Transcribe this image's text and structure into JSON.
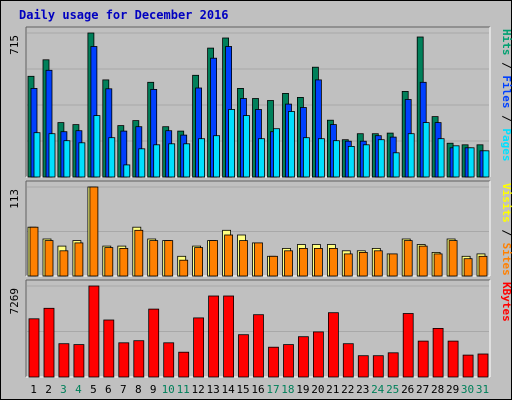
{
  "chart_data": {
    "type": "bar",
    "title": "Daily usage for December 2016",
    "categories": [
      "1",
      "2",
      "3",
      "4",
      "5",
      "6",
      "7",
      "8",
      "9",
      "10",
      "11",
      "12",
      "13",
      "14",
      "15",
      "16",
      "17",
      "18",
      "19",
      "20",
      "21",
      "22",
      "23",
      "24",
      "25",
      "26",
      "27",
      "28",
      "29",
      "30",
      "31"
    ],
    "weekend_days": [
      "3",
      "4",
      "10",
      "11",
      "17",
      "18",
      "24",
      "25",
      "30",
      "31"
    ],
    "panels": [
      {
        "id": "requests",
        "y_max_label": "715",
        "ymax": 715,
        "legend": [
          {
            "text": "Pages",
            "color": "#00e0ff"
          },
          {
            "text": "Files",
            "color": "#0040ff"
          },
          {
            "text": "Hits",
            "color": "#00a070"
          }
        ],
        "series": [
          {
            "name": "Hits",
            "color": "#00805a",
            "values": [
              500,
              582,
              270,
              260,
              715,
              482,
              255,
              280,
              470,
              250,
              228,
              505,
              640,
              690,
              440,
              390,
              380,
              415,
              395,
              545,
              282,
              185,
              215,
              215,
              218,
              425,
              695,
              300,
              168,
              160,
              160
            ]
          },
          {
            "name": "Files",
            "color": "#0040ff",
            "values": [
              440,
              530,
              225,
              230,
              648,
              438,
              228,
              250,
              435,
              230,
              208,
              442,
              590,
              648,
              390,
              335,
              225,
              362,
              345,
              482,
              260,
              178,
              178,
              205,
              198,
              385,
              470,
              270,
              145,
              145,
              130
            ]
          },
          {
            "name": "Pages",
            "color": "#00e0ff",
            "values": [
              220,
              215,
              180,
              170,
              305,
              195,
              60,
              140,
              160,
              165,
              165,
              190,
              205,
              335,
              305,
              190,
              240,
              325,
              195,
              190,
              180,
              152,
              160,
              185,
              120,
              215,
              270,
              190,
              155,
              145,
              130
            ]
          }
        ]
      },
      {
        "id": "visits",
        "y_max_label": "113",
        "ymax": 113,
        "legend": [
          {
            "text": "Sites",
            "color": "#ff8000"
          },
          {
            "text": "Visits",
            "color": "#ffff00"
          }
        ],
        "series": [
          {
            "name": "Visits",
            "color": "#ffff80",
            "values": [
              62,
              47,
              38,
              45,
              113,
              38,
              38,
              62,
              47,
              45,
              25,
              38,
              45,
              58,
              52,
              42,
              25,
              35,
              40,
              40,
              40,
              32,
              32,
              35,
              28,
              47,
              40,
              30,
              47,
              25,
              28
            ]
          },
          {
            "name": "Sites",
            "color": "#ff8000",
            "values": [
              62,
              45,
              32,
              42,
              113,
              36,
              35,
              58,
              45,
              45,
              20,
              36,
              45,
              52,
              45,
              42,
              25,
              32,
              35,
              35,
              35,
              28,
              30,
              32,
              28,
              45,
              38,
              28,
              45,
              22,
              25
            ]
          }
        ]
      },
      {
        "id": "kbytes",
        "y_max_label": "7269",
        "ymax": 7269,
        "legend": [
          {
            "text": "KBytes",
            "color": "#ff0000"
          }
        ],
        "series": [
          {
            "name": "KBytes",
            "color": "#ff0000",
            "values": [
              4650,
              5490,
              2660,
              2590,
              7269,
              4550,
              2730,
              2900,
              5420,
              2730,
              1980,
              4720,
              6470,
              6470,
              3380,
              4980,
              2380,
              2590,
              3220,
              3600,
              5140,
              2660,
              1700,
              1700,
              1930,
              5070,
              2870,
              3880,
              2870,
              1750,
              1840
            ]
          }
        ]
      }
    ]
  }
}
